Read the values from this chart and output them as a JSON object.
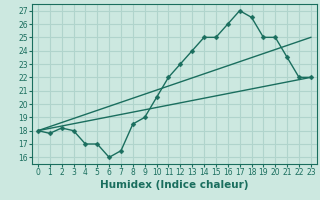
{
  "title": "",
  "xlabel": "Humidex (Indice chaleur)",
  "ylabel": "",
  "bg_color": "#cce8e0",
  "grid_color": "#b0d4cc",
  "line_color": "#1a6e5e",
  "xlim": [
    -0.5,
    23.5
  ],
  "ylim": [
    15.5,
    27.5
  ],
  "xticks": [
    0,
    1,
    2,
    3,
    4,
    5,
    6,
    7,
    8,
    9,
    10,
    11,
    12,
    13,
    14,
    15,
    16,
    17,
    18,
    19,
    20,
    21,
    22,
    23
  ],
  "yticks": [
    16,
    17,
    18,
    19,
    20,
    21,
    22,
    23,
    24,
    25,
    26,
    27
  ],
  "line1_x": [
    0,
    1,
    2,
    3,
    4,
    5,
    6,
    7,
    8,
    9,
    10,
    11,
    12,
    13,
    14,
    15,
    16,
    17,
    18,
    19,
    20,
    21,
    22,
    23
  ],
  "line1_y": [
    18,
    17.8,
    18.2,
    18.0,
    17.0,
    17.0,
    16.0,
    16.5,
    18.5,
    19.0,
    20.5,
    22.0,
    23.0,
    24.0,
    25.0,
    25.0,
    26.0,
    27.0,
    26.5,
    25.0,
    25.0,
    23.5,
    22.0,
    22.0
  ],
  "line2_x": [
    0,
    23
  ],
  "line2_y": [
    18.0,
    22.0
  ],
  "line3_x": [
    0,
    23
  ],
  "line3_y": [
    18.0,
    25.0
  ],
  "marker": "D",
  "marker_size": 2.5,
  "line_width": 1.0,
  "tick_fontsize": 5.5,
  "xlabel_fontsize": 7.5
}
